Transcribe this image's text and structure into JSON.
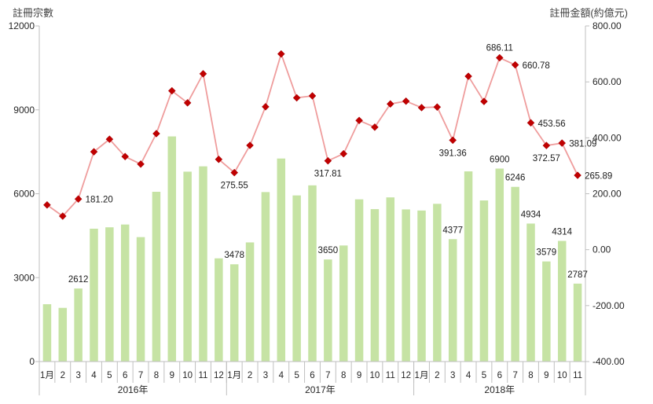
{
  "chart_data": {
    "type": "bar-line-combo",
    "left_axis_title": "註冊宗數",
    "right_axis_title": "註冊金額(約億元)",
    "left_axis": {
      "min": 0,
      "max": 12000,
      "ticks": [
        "12000",
        "9000",
        "6000",
        "3000",
        "0"
      ]
    },
    "right_axis": {
      "min": -400,
      "max": 800,
      "ticks": [
        "800.00",
        "600.00",
        "400.00",
        "200.00",
        "0.00",
        "-200.00",
        "-400.00"
      ]
    },
    "years": [
      {
        "label": "2016年",
        "months": 12
      },
      {
        "label": "2017年",
        "months": 12
      },
      {
        "label": "2018年",
        "months": 11
      }
    ],
    "month_labels": [
      "1月",
      "2",
      "3",
      "4",
      "5",
      "6",
      "7",
      "8",
      "9",
      "10",
      "11",
      "12",
      "1月",
      "2",
      "3",
      "4",
      "5",
      "6",
      "7",
      "8",
      "9",
      "10",
      "11",
      "12",
      "1月",
      "2",
      "3",
      "4",
      "5",
      "6",
      "7",
      "8",
      "9",
      "10",
      "11"
    ],
    "series": [
      {
        "name": "註冊宗數",
        "type": "bar",
        "color": "#c6e3a4",
        "values": [
          2050,
          1920,
          2612,
          4750,
          4800,
          4900,
          4450,
          6070,
          8050,
          6790,
          6980,
          3690,
          3478,
          4260,
          6060,
          7260,
          5940,
          6300,
          3650,
          4150,
          5800,
          5450,
          5870,
          5440,
          5400,
          5640,
          4377,
          6800,
          5760,
          6900,
          6246,
          4934,
          3579,
          4314,
          2787
        ]
      },
      {
        "name": "註冊金額(約億元)",
        "type": "line",
        "color": "#ef9d9d",
        "marker_color": "#c00000",
        "marker_edge_color": "#9c0006",
        "values": [
          160,
          120,
          181.2,
          350,
          395,
          333,
          306,
          415,
          568,
          525,
          629,
          323,
          275.55,
          373,
          511,
          700,
          543,
          550,
          317.81,
          343,
          462,
          438,
          521,
          531,
          508,
          510,
          391.36,
          620,
          530,
          686.11,
          660.78,
          453.56,
          372.57,
          381.09,
          265.89
        ]
      }
    ],
    "bar_labels": {
      "2": "2612",
      "12": "3478",
      "18": "3650",
      "26": "4377",
      "29": "6900",
      "30": "6246",
      "31": "4934",
      "32": "3579",
      "33": "4314",
      "34": "2787"
    },
    "line_labels": {
      "2": {
        "text": "181.20",
        "pos": "right"
      },
      "12": {
        "text": "275.55",
        "pos": "below"
      },
      "18": {
        "text": "317.81",
        "pos": "below"
      },
      "26": {
        "text": "391.36",
        "pos": "below"
      },
      "29": {
        "text": "686.11",
        "pos": "above"
      },
      "30": {
        "text": "660.78",
        "pos": "right"
      },
      "31": {
        "text": "453.56",
        "pos": "right"
      },
      "32": {
        "text": "372.57",
        "pos": "below"
      },
      "33": {
        "text": "381.09",
        "pos": "right"
      },
      "34": {
        "text": "265.89",
        "pos": "right"
      }
    },
    "colors": {
      "axis_line": "#bfbfbf",
      "tick_text": "#262626",
      "data_label_text": "#1a1a1a",
      "title_text": "#404040"
    },
    "layout_hints": {
      "grid": "off",
      "legend": "none"
    }
  }
}
